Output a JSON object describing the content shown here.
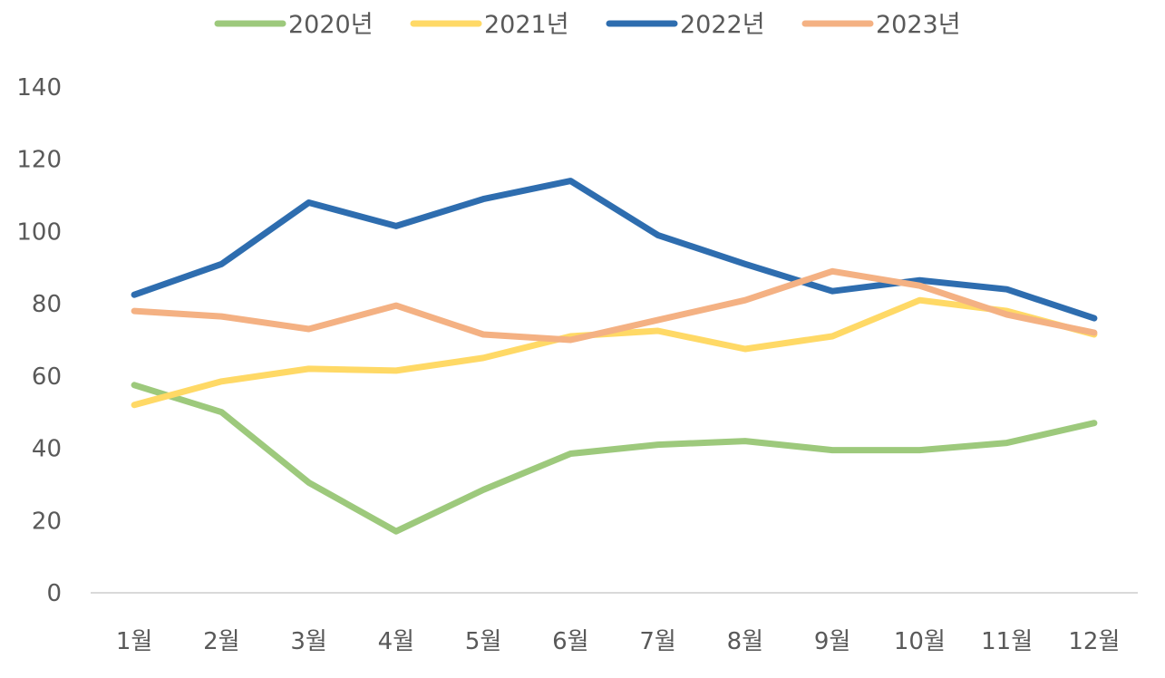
{
  "chart_data": {
    "type": "line",
    "title": "",
    "xlabel": "",
    "ylabel": "",
    "categories": [
      "1월",
      "2월",
      "3월",
      "4월",
      "5월",
      "6월",
      "7월",
      "8월",
      "9월",
      "10월",
      "11월",
      "12월"
    ],
    "ylim": [
      0,
      140
    ],
    "yticks": [
      "0",
      "20",
      "40",
      "60",
      "80",
      "100",
      "120",
      "140"
    ],
    "grid": false,
    "legend_position": "top",
    "series": [
      {
        "name": "2020년",
        "color": "#9DC97C",
        "values": [
          57.5,
          50,
          30.5,
          17,
          28.5,
          38.5,
          41,
          42,
          39.5,
          39.5,
          41.5,
          47
        ]
      },
      {
        "name": "2021년",
        "color": "#FFD966",
        "values": [
          52,
          58.5,
          62,
          61.5,
          65,
          71,
          72.5,
          67.5,
          71,
          81,
          78,
          71.5
        ]
      },
      {
        "name": "2022년",
        "color": "#2E6DAF",
        "values": [
          82.5,
          91,
          108,
          101.5,
          109,
          114,
          99,
          91,
          83.5,
          86.5,
          84,
          76
        ]
      },
      {
        "name": "2023년",
        "color": "#F4B183",
        "values": [
          78,
          76.5,
          73,
          79.5,
          71.5,
          70,
          75.5,
          81,
          89,
          85,
          77,
          72
        ]
      }
    ]
  }
}
